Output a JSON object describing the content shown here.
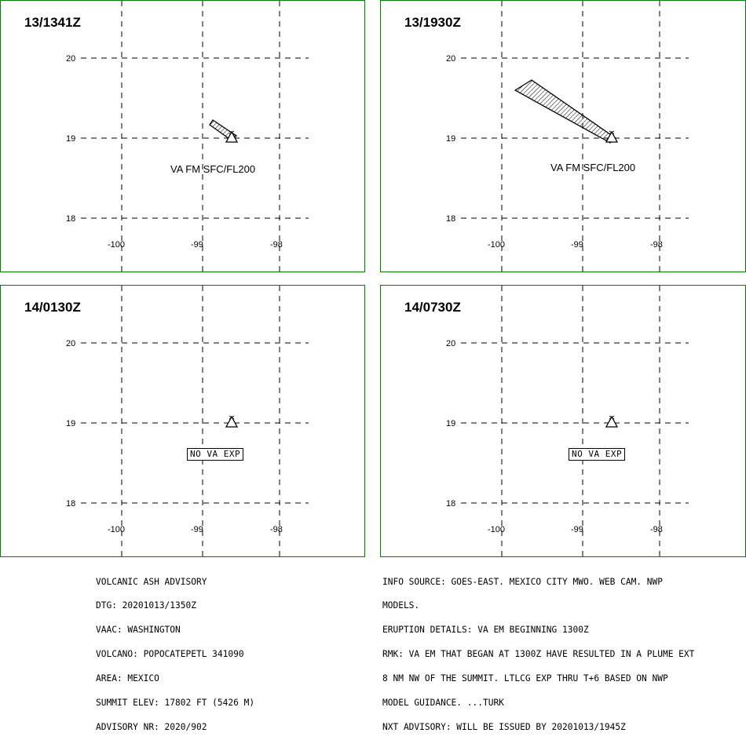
{
  "panels": [
    {
      "time": "13/1341Z",
      "lat_labels": [
        "20",
        "19",
        "18"
      ],
      "lon_labels": [
        "-100",
        "-99",
        "-98"
      ],
      "label_type": "va",
      "label": "VA FM SFC/FL200",
      "plume": "small"
    },
    {
      "time": "13/1930Z",
      "lat_labels": [
        "20",
        "19",
        "18"
      ],
      "lon_labels": [
        "-100",
        "-99",
        "-98"
      ],
      "label_type": "va",
      "label": "VA FM SFC/FL200",
      "plume": "large"
    },
    {
      "time": "14/0130Z",
      "lat_labels": [
        "20",
        "19",
        "18"
      ],
      "lon_labels": [
        "-100",
        "-99",
        "-98"
      ],
      "label_type": "box",
      "label": "NO VA EXP",
      "plume": "none"
    },
    {
      "time": "14/0730Z",
      "lat_labels": [
        "20",
        "19",
        "18"
      ],
      "lon_labels": [
        "-100",
        "-99",
        "-98"
      ],
      "label_type": "box",
      "label": "NO VA EXP",
      "plume": "none"
    }
  ],
  "advisory_left": [
    "VOLCANIC ASH ADVISORY",
    "DTG: 20201013/1350Z",
    "VAAC: WASHINGTON",
    "VOLCANO: POPOCATEPETL 341090",
    "AREA: MEXICO",
    "SUMMIT ELEV: 17802 FT (5426 M)",
    "ADVISORY NR: 2020/902"
  ],
  "advisory_right": [
    "INFO SOURCE: GOES-EAST. MEXICO CITY MWO. WEB CAM. NWP",
    "MODELS.",
    "ERUPTION DETAILS: VA EM BEGINNING 1300Z",
    "RMK: VA EM THAT BEGAN AT 1300Z HAVE RESULTED IN A PLUME EXT",
    "8 NM NW OF THE SUMMIT. LTLCG EXP THRU T+6 BASED ON NWP",
    "MODEL GUIDANCE. ...TURK",
    "NXT ADVISORY: WILL BE ISSUED BY 20201013/1945Z"
  ],
  "colors": {
    "panel_border": "#008000",
    "grid": "#000000",
    "background": "#ffffff"
  },
  "icons": {
    "volcano": "volcano-triangle-icon"
  }
}
